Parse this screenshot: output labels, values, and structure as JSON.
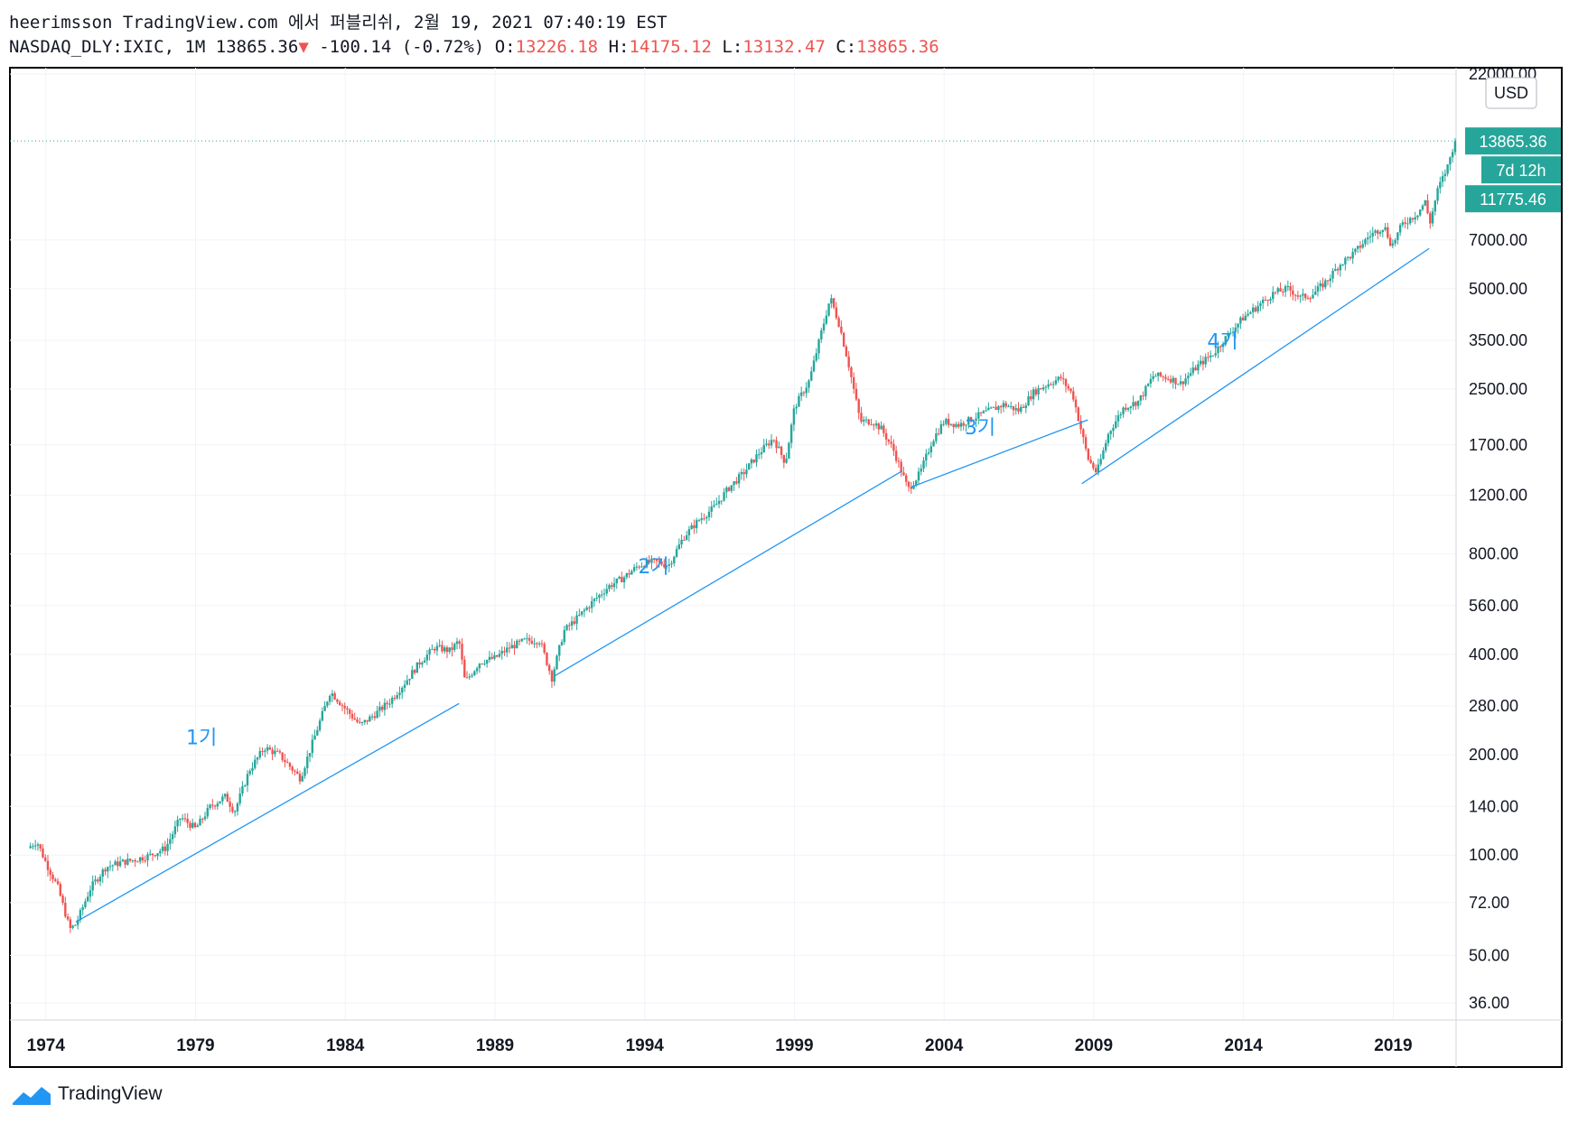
{
  "header": {
    "line1": "heerimsson TradingView.com 에서 퍼블리쉬, 2월 19, 2021 07:40:19 EST",
    "symbol": "NASDAQ_DLY:IXIC, 1M",
    "last": "13865.36",
    "change": "-100.14 (-0.72%)",
    "o_label": "O:",
    "o_value": "13226.18",
    "h_label": "H:",
    "h_value": "14175.12",
    "l_label": "L:",
    "l_value": "13132.47",
    "c_label": "C:",
    "c_value": "13865.36"
  },
  "footer": {
    "brand": "TradingView"
  },
  "colors": {
    "up": "#26a69a",
    "down": "#ef5350",
    "trendline": "#2196f3",
    "label_text": "#2196f3",
    "price_badge": "#26a69a"
  },
  "chart_data": {
    "type": "candlestick",
    "title": "",
    "scale": "log",
    "currency": "USD",
    "ylim": [
      32,
      23000
    ],
    "xlim": [
      1972.8,
      2021.1
    ],
    "y_ticks": [
      "36.00",
      "50.00",
      "72.00",
      "100.00",
      "140.00",
      "200.00",
      "280.00",
      "400.00",
      "560.00",
      "800.00",
      "1200.00",
      "1700.00",
      "2500.00",
      "3500.00",
      "5000.00",
      "7000.00",
      "22000.00"
    ],
    "x_ticks": [
      "1974",
      "1979",
      "1984",
      "1989",
      "1994",
      "1999",
      "2004",
      "2009",
      "2014",
      "2019"
    ],
    "price_badges": [
      "13865.36",
      "7d 12h",
      "11775.46"
    ],
    "last_price": 13865.36,
    "series": [
      {
        "data": [
          [
            1973.4,
            105
          ],
          [
            1973.7,
            110
          ],
          [
            1974.0,
            95
          ],
          [
            1974.4,
            80
          ],
          [
            1974.8,
            60
          ],
          [
            1975.0,
            62
          ],
          [
            1975.5,
            80
          ],
          [
            1976.0,
            92
          ],
          [
            1976.5,
            95
          ],
          [
            1977.0,
            97
          ],
          [
            1977.5,
            100
          ],
          [
            1978.0,
            105
          ],
          [
            1978.5,
            130
          ],
          [
            1979.0,
            120
          ],
          [
            1979.5,
            140
          ],
          [
            1980.0,
            150
          ],
          [
            1980.3,
            135
          ],
          [
            1980.8,
            180
          ],
          [
            1981.3,
            210
          ],
          [
            1981.8,
            200
          ],
          [
            1982.5,
            170
          ],
          [
            1983.0,
            230
          ],
          [
            1983.5,
            310
          ],
          [
            1984.0,
            275
          ],
          [
            1984.5,
            245
          ],
          [
            1985.0,
            265
          ],
          [
            1985.5,
            290
          ],
          [
            1986.0,
            330
          ],
          [
            1986.5,
            380
          ],
          [
            1987.0,
            420
          ],
          [
            1987.5,
            410
          ],
          [
            1987.8,
            440
          ],
          [
            1988.0,
            330
          ],
          [
            1988.5,
            380
          ],
          [
            1989.0,
            390
          ],
          [
            1989.5,
            420
          ],
          [
            1990.0,
            440
          ],
          [
            1990.5,
            440
          ],
          [
            1990.9,
            340
          ],
          [
            1991.3,
            470
          ],
          [
            1991.8,
            520
          ],
          [
            1992.3,
            580
          ],
          [
            1992.8,
            640
          ],
          [
            1993.3,
            680
          ],
          [
            1993.8,
            740
          ],
          [
            1994.3,
            760
          ],
          [
            1994.8,
            740
          ],
          [
            1995.3,
            900
          ],
          [
            1995.8,
            1010
          ],
          [
            1996.3,
            1100
          ],
          [
            1996.8,
            1260
          ],
          [
            1997.3,
            1400
          ],
          [
            1997.8,
            1600
          ],
          [
            1998.3,
            1780
          ],
          [
            1998.7,
            1500
          ],
          [
            1999.0,
            2200
          ],
          [
            1999.5,
            2650
          ],
          [
            1999.9,
            3700
          ],
          [
            2000.2,
            4700
          ],
          [
            2000.5,
            3900
          ],
          [
            2000.8,
            3000
          ],
          [
            2001.2,
            2000
          ],
          [
            2001.6,
            2000
          ],
          [
            2001.9,
            1900
          ],
          [
            2002.3,
            1650
          ],
          [
            2002.8,
            1250
          ],
          [
            2003.2,
            1400
          ],
          [
            2003.6,
            1750
          ],
          [
            2004.0,
            2000
          ],
          [
            2004.5,
            1950
          ],
          [
            2005.0,
            2050
          ],
          [
            2005.5,
            2150
          ],
          [
            2006.0,
            2250
          ],
          [
            2006.5,
            2150
          ],
          [
            2007.0,
            2450
          ],
          [
            2007.5,
            2600
          ],
          [
            2007.9,
            2700
          ],
          [
            2008.3,
            2400
          ],
          [
            2008.8,
            1550
          ],
          [
            2009.1,
            1400
          ],
          [
            2009.5,
            1850
          ],
          [
            2010.0,
            2200
          ],
          [
            2010.5,
            2300
          ],
          [
            2011.0,
            2750
          ],
          [
            2011.5,
            2700
          ],
          [
            2011.9,
            2600
          ],
          [
            2012.5,
            2950
          ],
          [
            2013.0,
            3200
          ],
          [
            2013.5,
            3650
          ],
          [
            2014.0,
            4100
          ],
          [
            2014.5,
            4450
          ],
          [
            2015.0,
            4850
          ],
          [
            2015.5,
            5000
          ],
          [
            2015.9,
            4700
          ],
          [
            2016.3,
            4800
          ],
          [
            2016.8,
            5300
          ],
          [
            2017.2,
            5900
          ],
          [
            2017.7,
            6400
          ],
          [
            2018.2,
            7200
          ],
          [
            2018.7,
            7700
          ],
          [
            2018.95,
            6700
          ],
          [
            2019.3,
            7800
          ],
          [
            2019.8,
            8400
          ],
          [
            2020.1,
            9200
          ],
          [
            2020.2,
            7700
          ],
          [
            2020.5,
            10000
          ],
          [
            2020.8,
            11500
          ],
          [
            2021.0,
            13300
          ],
          [
            2021.1,
            13865
          ]
        ]
      }
    ],
    "trendlines": [
      {
        "from": [
          1975.0,
          63
        ],
        "to": [
          1987.8,
          285
        ]
      },
      {
        "from": [
          1991.0,
          345
        ],
        "to": [
          2002.6,
          1420
        ]
      },
      {
        "from": [
          2002.9,
          1270
        ],
        "to": [
          2008.8,
          2020
        ]
      },
      {
        "from": [
          2008.6,
          1300
        ],
        "to": [
          2020.2,
          6600
        ]
      }
    ],
    "annotations": [
      {
        "text": "1기",
        "x": 1979.2,
        "y": 215
      },
      {
        "text": "2기",
        "x": 1994.3,
        "y": 700
      },
      {
        "text": "3기",
        "x": 2005.2,
        "y": 1830
      },
      {
        "text": "4기",
        "x": 2013.3,
        "y": 3320
      }
    ]
  }
}
